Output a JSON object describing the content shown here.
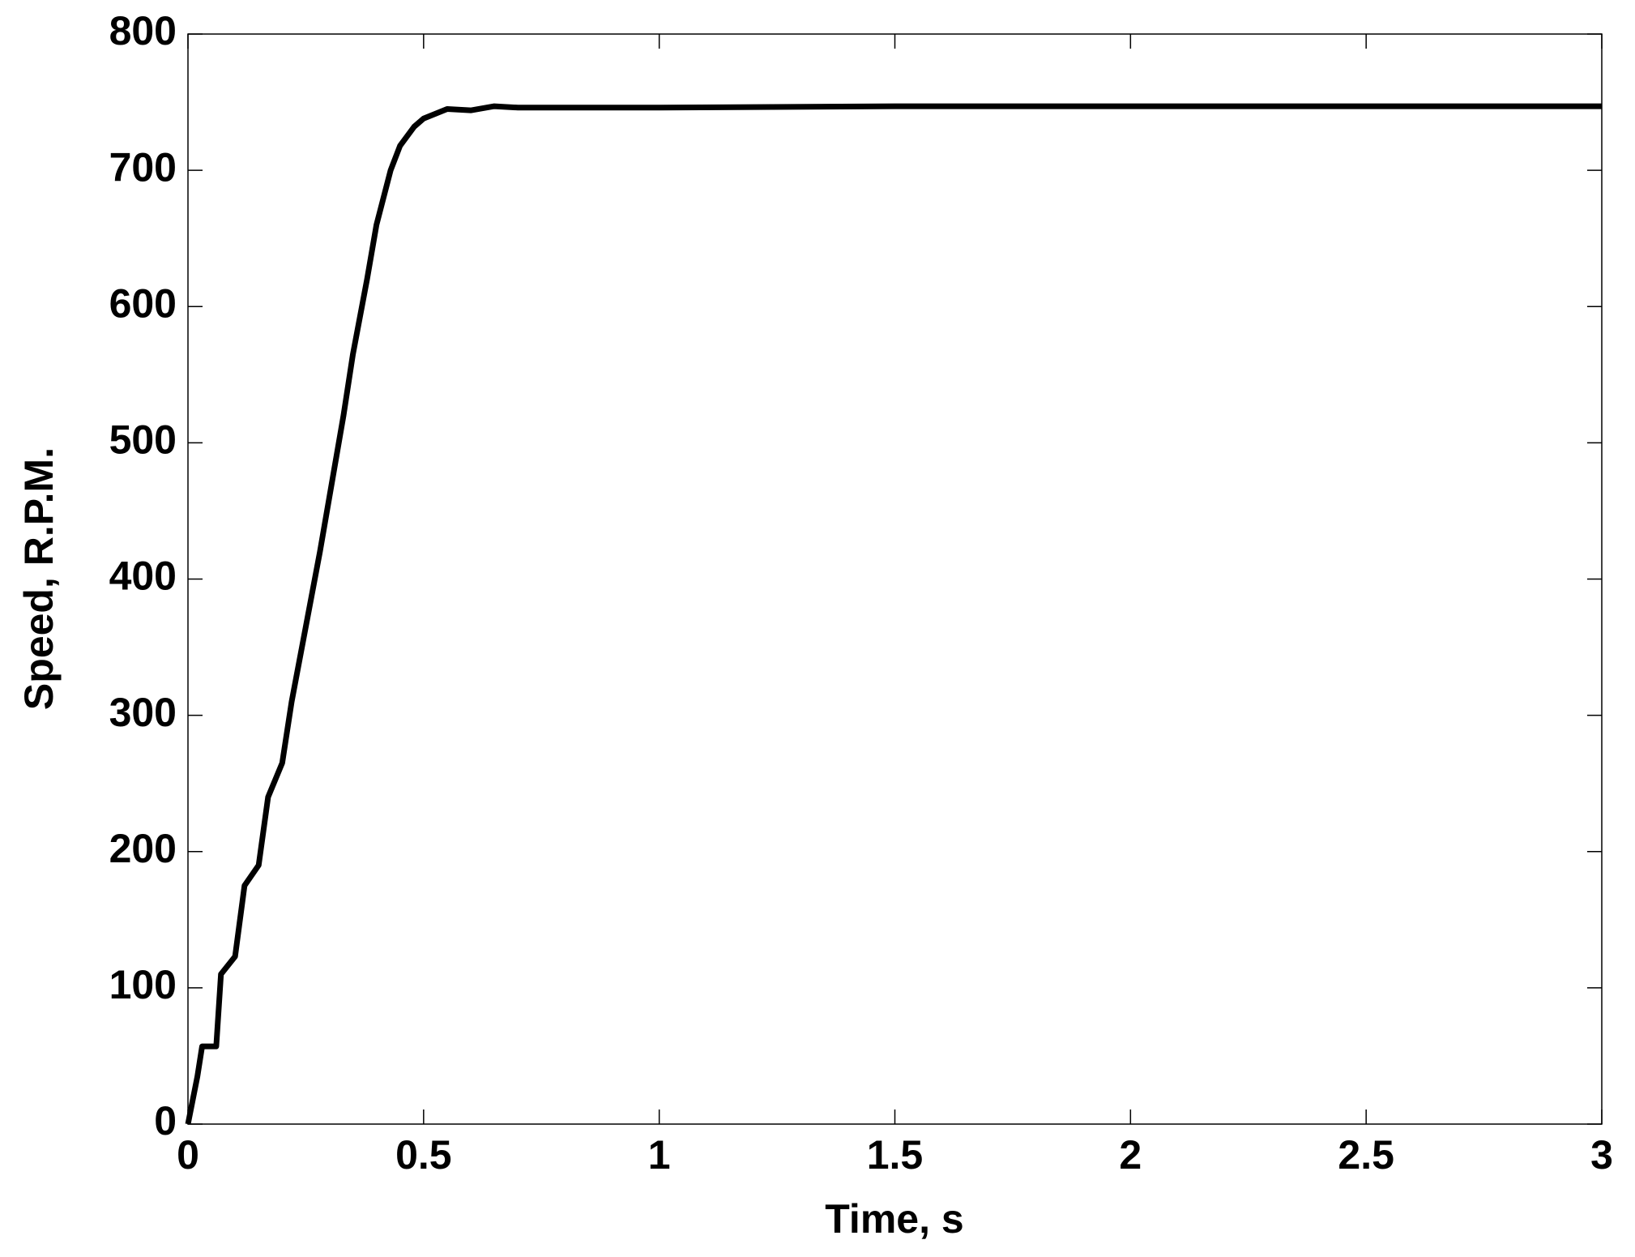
{
  "chart_data": {
    "type": "line",
    "xlabel": "Time, s",
    "ylabel": "Speed, R.P.M.",
    "series": [
      {
        "color": "#000000",
        "x": [
          0,
          0.02,
          0.03,
          0.06,
          0.07,
          0.1,
          0.12,
          0.15,
          0.17,
          0.2,
          0.22,
          0.25,
          0.28,
          0.3,
          0.33,
          0.35,
          0.38,
          0.4,
          0.43,
          0.45,
          0.48,
          0.5,
          0.55,
          0.6,
          0.65,
          0.7,
          1,
          1.5,
          2,
          2.5,
          3
        ],
        "values": [
          0,
          35,
          57,
          57,
          110,
          123,
          175,
          190,
          240,
          265,
          310,
          365,
          420,
          460,
          520,
          565,
          620,
          660,
          700,
          718,
          732,
          738,
          745,
          744,
          747,
          746,
          746,
          747,
          747,
          747,
          747
        ]
      }
    ],
    "xlim": [
      0,
      3
    ],
    "xticks": [
      0,
      0.5,
      1,
      1.5,
      2,
      2.5,
      3
    ],
    "ylim": [
      0,
      800
    ],
    "yticks": [
      0,
      100,
      200,
      300,
      400,
      500,
      600,
      700,
      800
    ],
    "grid": false
  }
}
